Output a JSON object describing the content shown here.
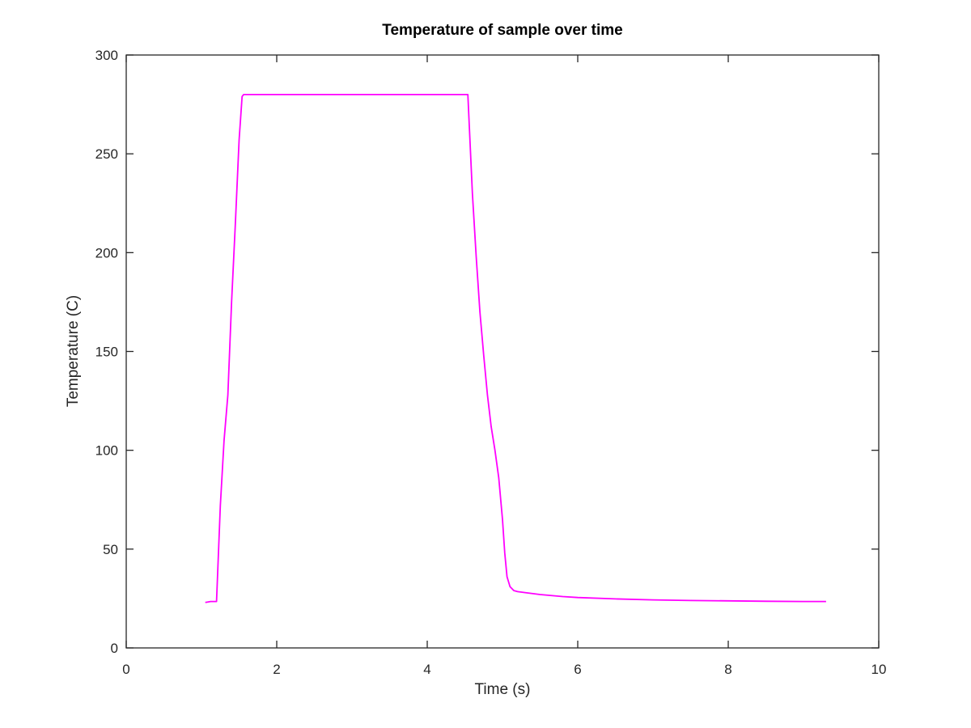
{
  "chart_data": {
    "type": "line",
    "title": "Temperature of sample over time",
    "xlabel": "Time (s)",
    "ylabel": "Temperature (C)",
    "xlim": [
      0,
      10
    ],
    "ylim": [
      0,
      300
    ],
    "xticks": [
      0,
      2,
      4,
      6,
      8,
      10
    ],
    "yticks": [
      0,
      50,
      100,
      150,
      200,
      250,
      300
    ],
    "grid": false,
    "series": [
      {
        "color": "#ff00ff",
        "x": [
          1.05,
          1.12,
          1.18,
          1.2,
          1.25,
          1.3,
          1.35,
          1.4,
          1.45,
          1.5,
          1.54,
          1.56,
          4.54,
          4.56,
          4.6,
          4.65,
          4.7,
          4.75,
          4.8,
          4.85,
          4.9,
          4.95,
          5.0,
          5.03,
          5.06,
          5.1,
          5.15,
          5.2,
          5.3,
          5.5,
          5.8,
          6.0,
          6.5,
          7.0,
          7.5,
          8.0,
          8.5,
          9.0,
          9.3
        ],
        "y": [
          23,
          23.5,
          23.5,
          23.5,
          72,
          105,
          128,
          175,
          215,
          257,
          279,
          280,
          280,
          263,
          230,
          198,
          170,
          148,
          128,
          112,
          100,
          86,
          65,
          48,
          36,
          31,
          29,
          28.5,
          28,
          27,
          26,
          25.5,
          24.8,
          24.3,
          24,
          23.8,
          23.6,
          23.5,
          23.5
        ]
      }
    ]
  }
}
